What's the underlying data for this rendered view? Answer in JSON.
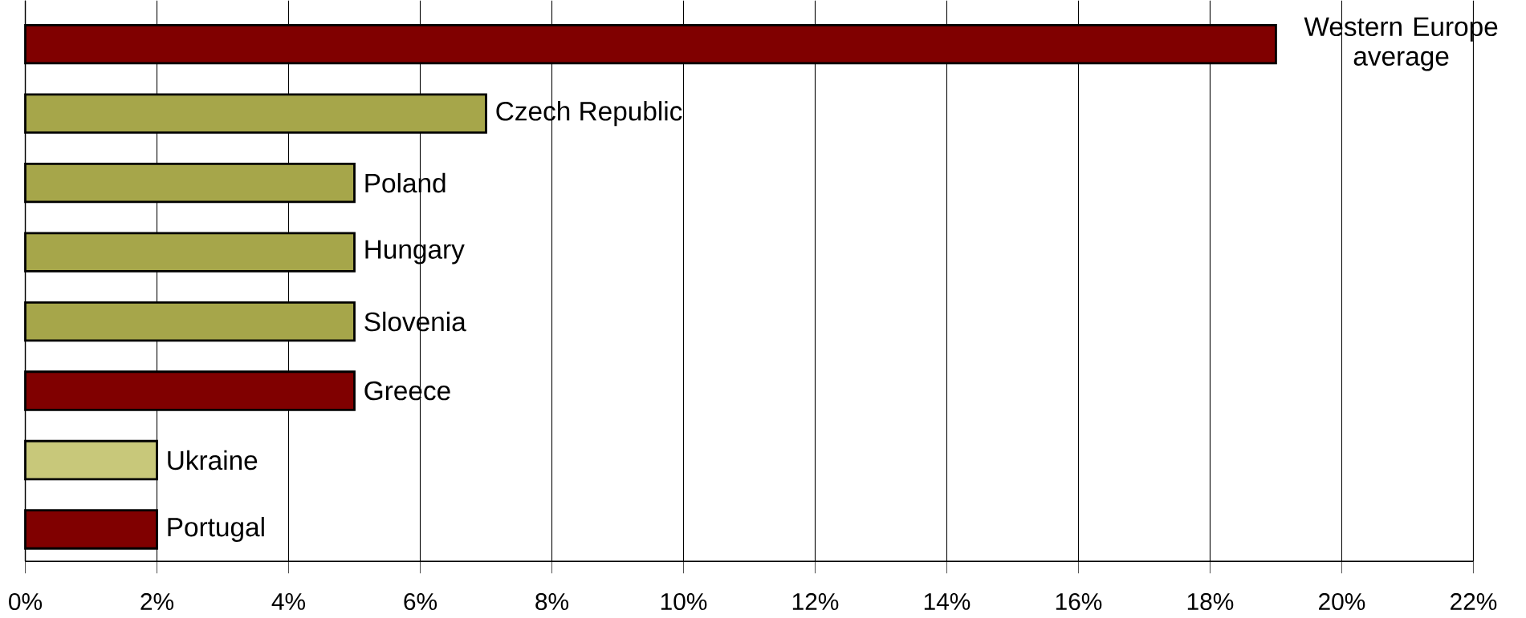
{
  "chart_data": {
    "type": "bar",
    "orientation": "horizontal",
    "categories": [
      "Western Europe average",
      "Czech Republic",
      "Poland",
      "Hungary",
      "Slovenia",
      "Greece",
      "Ukraine",
      "Portugal"
    ],
    "values": [
      19,
      7,
      5,
      5,
      5,
      5,
      2,
      2
    ],
    "colors": [
      "#800000",
      "#a6a64a",
      "#a6a64a",
      "#a6a64a",
      "#a6a64a",
      "#800000",
      "#c8c87a",
      "#800000"
    ],
    "xlim": [
      0,
      22
    ],
    "xticks": [
      {
        "value": 0,
        "label": "0%"
      },
      {
        "value": 2,
        "label": "2%"
      },
      {
        "value": 4,
        "label": "4%"
      },
      {
        "value": 6,
        "label": "6%"
      },
      {
        "value": 8,
        "label": "8%"
      },
      {
        "value": 10,
        "label": "10%"
      },
      {
        "value": 12,
        "label": "12%"
      },
      {
        "value": 14,
        "label": "14%"
      },
      {
        "value": 16,
        "label": "16%"
      },
      {
        "value": 18,
        "label": "18%"
      },
      {
        "value": 20,
        "label": "20%"
      },
      {
        "value": 22,
        "label": "22%"
      }
    ],
    "grid": "x",
    "tick_labels": "x"
  }
}
